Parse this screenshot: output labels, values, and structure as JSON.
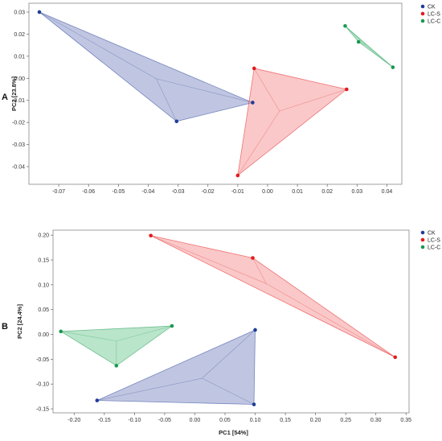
{
  "chart_data": [
    {
      "type": "scatter",
      "panel_label": "A",
      "xlabel": "",
      "ylabel": "PC2 [23.8%]",
      "xlim": [
        -0.08,
        0.045
      ],
      "ylim": [
        -0.048,
        0.034
      ],
      "xticks": [
        "-0.07",
        "-0.06",
        "-0.05",
        "-0.04",
        "-0.03",
        "-0.02",
        "-0.01",
        "0.00",
        "0.01",
        "0.02",
        "0.03",
        "0.04"
      ],
      "yticks": [
        "0.03",
        "0.02",
        "0.01",
        "0.00",
        "-0.01",
        "-0.02",
        "-0.03",
        "-0.04"
      ],
      "legend_position": "top-right",
      "series": [
        {
          "name": "CK",
          "color": "#1f3d99",
          "fill": "#8c98c8",
          "x": [
            -0.0765,
            -0.005,
            -0.0305
          ],
          "y": [
            0.03,
            -0.011,
            -0.0195
          ]
        },
        {
          "name": "LC-S",
          "color": "#e31a1c",
          "fill": "#f59a9a",
          "x": [
            -0.0045,
            0.0265,
            -0.01
          ],
          "y": [
            0.0045,
            -0.005,
            -0.044
          ]
        },
        {
          "name": "LC-C",
          "color": "#1a9850",
          "fill": "#7fcf9e",
          "x": [
            0.026,
            0.0305,
            0.042
          ],
          "y": [
            0.0237,
            0.0165,
            0.005
          ]
        }
      ]
    },
    {
      "type": "scatter",
      "panel_label": "B",
      "xlabel": "PC1 [54%]",
      "ylabel": "PC2 [24.4%]",
      "xlim": [
        -0.235,
        0.355
      ],
      "ylim": [
        -0.158,
        0.21
      ],
      "xticks": [
        "-0.20",
        "-0.15",
        "-0.10",
        "-0.05",
        "0.00",
        "0.05",
        "0.10",
        "0.15",
        "0.20",
        "0.25",
        "0.30",
        "0.35"
      ],
      "yticks": [
        "0.20",
        "0.15",
        "0.10",
        "0.05",
        "0.00",
        "-0.05",
        "-0.10",
        "-0.15"
      ],
      "legend_position": "top-right",
      "series": [
        {
          "name": "CK",
          "color": "#1f3d99",
          "fill": "#8c98c8",
          "x": [
            0.1,
            0.098,
            -0.162
          ],
          "y": [
            0.009,
            -0.141,
            -0.133
          ]
        },
        {
          "name": "LC-S",
          "color": "#e31a1c",
          "fill": "#f59a9a",
          "x": [
            -0.073,
            0.096,
            0.332
          ],
          "y": [
            0.199,
            0.154,
            -0.046
          ]
        },
        {
          "name": "LC-C",
          "color": "#1a9850",
          "fill": "#7fcf9e",
          "x": [
            -0.222,
            -0.038,
            -0.13
          ],
          "y": [
            0.006,
            0.017,
            -0.063
          ]
        }
      ]
    }
  ]
}
